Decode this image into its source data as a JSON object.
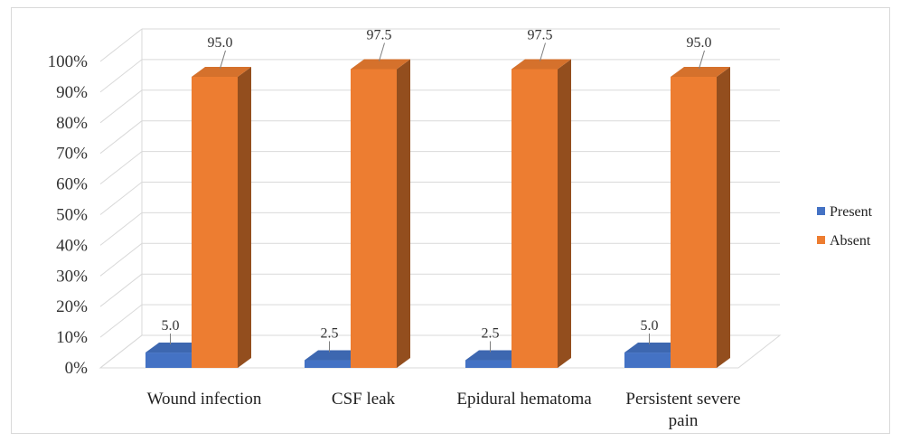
{
  "chart_data": {
    "type": "bar",
    "title": "",
    "xlabel": "",
    "ylabel": "",
    "ylim": [
      0,
      100
    ],
    "yticks": [
      "0%",
      "10%",
      "20%",
      "30%",
      "40%",
      "50%",
      "60%",
      "70%",
      "80%",
      "90%",
      "100%"
    ],
    "grid": true,
    "legend_position": "right",
    "categories": [
      [
        "Wound infection"
      ],
      [
        "CSF leak"
      ],
      [
        "Epidural hematoma"
      ],
      [
        "Persistent severe",
        "pain"
      ]
    ],
    "series": [
      {
        "name": "Present",
        "values": [
          5.0,
          2.5,
          2.5,
          5.0
        ],
        "labels": [
          "5.0",
          "2.5",
          "2.5",
          "5.0"
        ],
        "color": "#4472c4"
      },
      {
        "name": "Absent",
        "values": [
          95.0,
          97.5,
          97.5,
          95.0
        ],
        "labels": [
          "95.0",
          "97.5",
          "97.5",
          "95.0"
        ],
        "color": "#ed7d31"
      }
    ]
  }
}
